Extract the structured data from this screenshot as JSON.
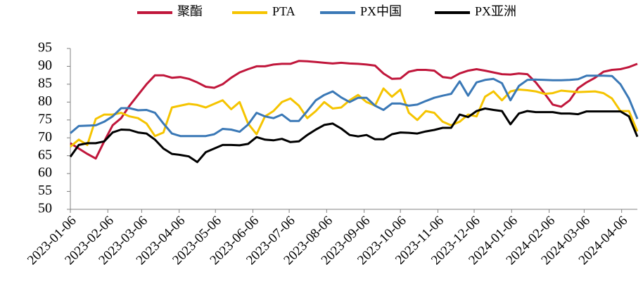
{
  "chart_data": {
    "type": "line",
    "x": [
      "2023-01-06",
      "2023-01-13",
      "2023-01-20",
      "2023-01-27",
      "2023-02-03",
      "2023-02-10",
      "2023-02-17",
      "2023-02-24",
      "2023-03-03",
      "2023-03-10",
      "2023-03-17",
      "2023-03-24",
      "2023-03-31",
      "2023-04-07",
      "2023-04-14",
      "2023-04-21",
      "2023-04-28",
      "2023-05-05",
      "2023-05-12",
      "2023-05-19",
      "2023-05-26",
      "2023-06-02",
      "2023-06-09",
      "2023-06-16",
      "2023-06-23",
      "2023-06-30",
      "2023-07-07",
      "2023-07-14",
      "2023-07-21",
      "2023-07-28",
      "2023-08-04",
      "2023-08-11",
      "2023-08-18",
      "2023-08-25",
      "2023-09-01",
      "2023-09-08",
      "2023-09-15",
      "2023-09-22",
      "2023-09-29",
      "2023-10-06",
      "2023-10-13",
      "2023-10-20",
      "2023-10-27",
      "2023-11-03",
      "2023-11-10",
      "2023-11-17",
      "2023-11-24",
      "2023-12-01",
      "2023-12-08",
      "2023-12-15",
      "2023-12-22",
      "2023-12-29",
      "2024-01-05",
      "2024-01-12",
      "2024-01-19",
      "2024-01-26",
      "2024-02-02",
      "2024-02-09",
      "2024-02-16",
      "2024-02-23",
      "2024-03-01",
      "2024-03-08",
      "2024-03-15",
      "2024-03-22",
      "2024-03-29",
      "2024-04-05",
      "2024-04-12",
      "2024-04-19"
    ],
    "series": [
      {
        "name": "聚酯",
        "color": "#c0163b",
        "values": [
          68.5,
          67,
          65.5,
          64.2,
          69,
          73.5,
          75.5,
          79,
          82,
          85,
          87.5,
          87.5,
          86.8,
          87,
          86.5,
          85.5,
          84.3,
          84,
          85,
          86.8,
          88.3,
          89.2,
          90,
          90,
          90.5,
          90.7,
          90.7,
          91.5,
          91.4,
          91.2,
          91,
          90.8,
          91,
          90.8,
          90.7,
          90.5,
          90.2,
          88,
          86.5,
          86.6,
          88.5,
          89,
          89,
          88.8,
          87,
          86.7,
          88,
          88.8,
          89.2,
          88.8,
          88.3,
          87.8,
          87.7,
          88,
          87.8,
          85.5,
          82.5,
          79.3,
          78.7,
          80.5,
          83.9,
          85.5,
          86.8,
          88.5,
          89,
          89.2,
          89.8,
          90.7
        ]
      },
      {
        "name": "PTA",
        "color": "#f5c400",
        "values": [
          67.5,
          69.5,
          68,
          75.3,
          76.5,
          76.5,
          77,
          76,
          75.5,
          74,
          70.5,
          71.5,
          78.5,
          79,
          79.5,
          79.2,
          78.5,
          79.5,
          80.5,
          78,
          80,
          74,
          71,
          76,
          77.5,
          80,
          81,
          79,
          75.5,
          77.5,
          80,
          78.2,
          78.5,
          80.5,
          82,
          80,
          79,
          83.8,
          81.5,
          83.5,
          77,
          75,
          77.5,
          77,
          74.5,
          73.5,
          74.5,
          76.5,
          76,
          81.5,
          83,
          80.5,
          83,
          83.5,
          83.3,
          83,
          82.3,
          82.5,
          83.2,
          83,
          82.8,
          82.9,
          83,
          82.5,
          81,
          77.5,
          77.5,
          71.8
        ]
      },
      {
        "name": "PX中国",
        "color": "#3a78b6",
        "values": [
          71.3,
          73.3,
          73.4,
          73.5,
          74.5,
          76,
          78.3,
          78.3,
          77.7,
          77.8,
          77,
          74,
          71.2,
          70.5,
          70.5,
          70.5,
          70.5,
          71,
          72.5,
          72.3,
          71.7,
          73.7,
          77,
          76,
          75.5,
          76.5,
          74.7,
          74.7,
          77.5,
          80.5,
          82,
          83,
          81.3,
          80,
          81.2,
          81.2,
          79,
          77.8,
          79.6,
          79.6,
          79,
          79.3,
          80.3,
          81.2,
          81.8,
          82.3,
          85.8,
          81.8,
          85.5,
          86.2,
          86.5,
          85.3,
          80.5,
          84.5,
          86.2,
          86.3,
          86.2,
          86.1,
          86.1,
          86.2,
          86.4,
          87.4,
          87.4,
          87.4,
          87.3,
          85,
          81,
          75.3
        ]
      },
      {
        "name": "PX亚洲",
        "color": "#000000",
        "values": [
          64.7,
          68,
          68.5,
          68.5,
          69,
          71.5,
          72.3,
          72.2,
          71.5,
          71.2,
          69.5,
          67,
          65.5,
          65.2,
          64.8,
          63.2,
          66,
          67,
          68,
          68,
          67.9,
          68.3,
          70.2,
          69.5,
          69.3,
          69.7,
          68.8,
          69,
          70.8,
          72.3,
          73.6,
          74,
          72.6,
          70.8,
          70.4,
          70.8,
          69.6,
          69.6,
          71,
          71.5,
          71.4,
          71.2,
          71.8,
          72.2,
          72.8,
          72.8,
          76.5,
          75.8,
          77.5,
          78.2,
          77.8,
          77.5,
          73.8,
          76.8,
          77.5,
          77.2,
          77.2,
          77.2,
          76.8,
          76.8,
          76.6,
          77.4,
          77.4,
          77.4,
          77.4,
          77.4,
          76,
          70.3
        ]
      }
    ],
    "xlim": [
      "2023-01-06",
      "2024-04-19"
    ],
    "xticks": [
      "2023-01-06",
      "2023-02-06",
      "2023-03-06",
      "2023-04-06",
      "2023-05-06",
      "2023-06-06",
      "2023-07-06",
      "2023-08-06",
      "2023-09-06",
      "2023-10-06",
      "2023-11-06",
      "2023-12-06",
      "2024-01-06",
      "2024-02-06",
      "2024-03-06",
      "2024-04-06"
    ],
    "ylim": [
      50,
      95
    ],
    "yticks": [
      50,
      55,
      60,
      65,
      70,
      75,
      80,
      85,
      90,
      95
    ],
    "grid": false,
    "legend": "top"
  }
}
